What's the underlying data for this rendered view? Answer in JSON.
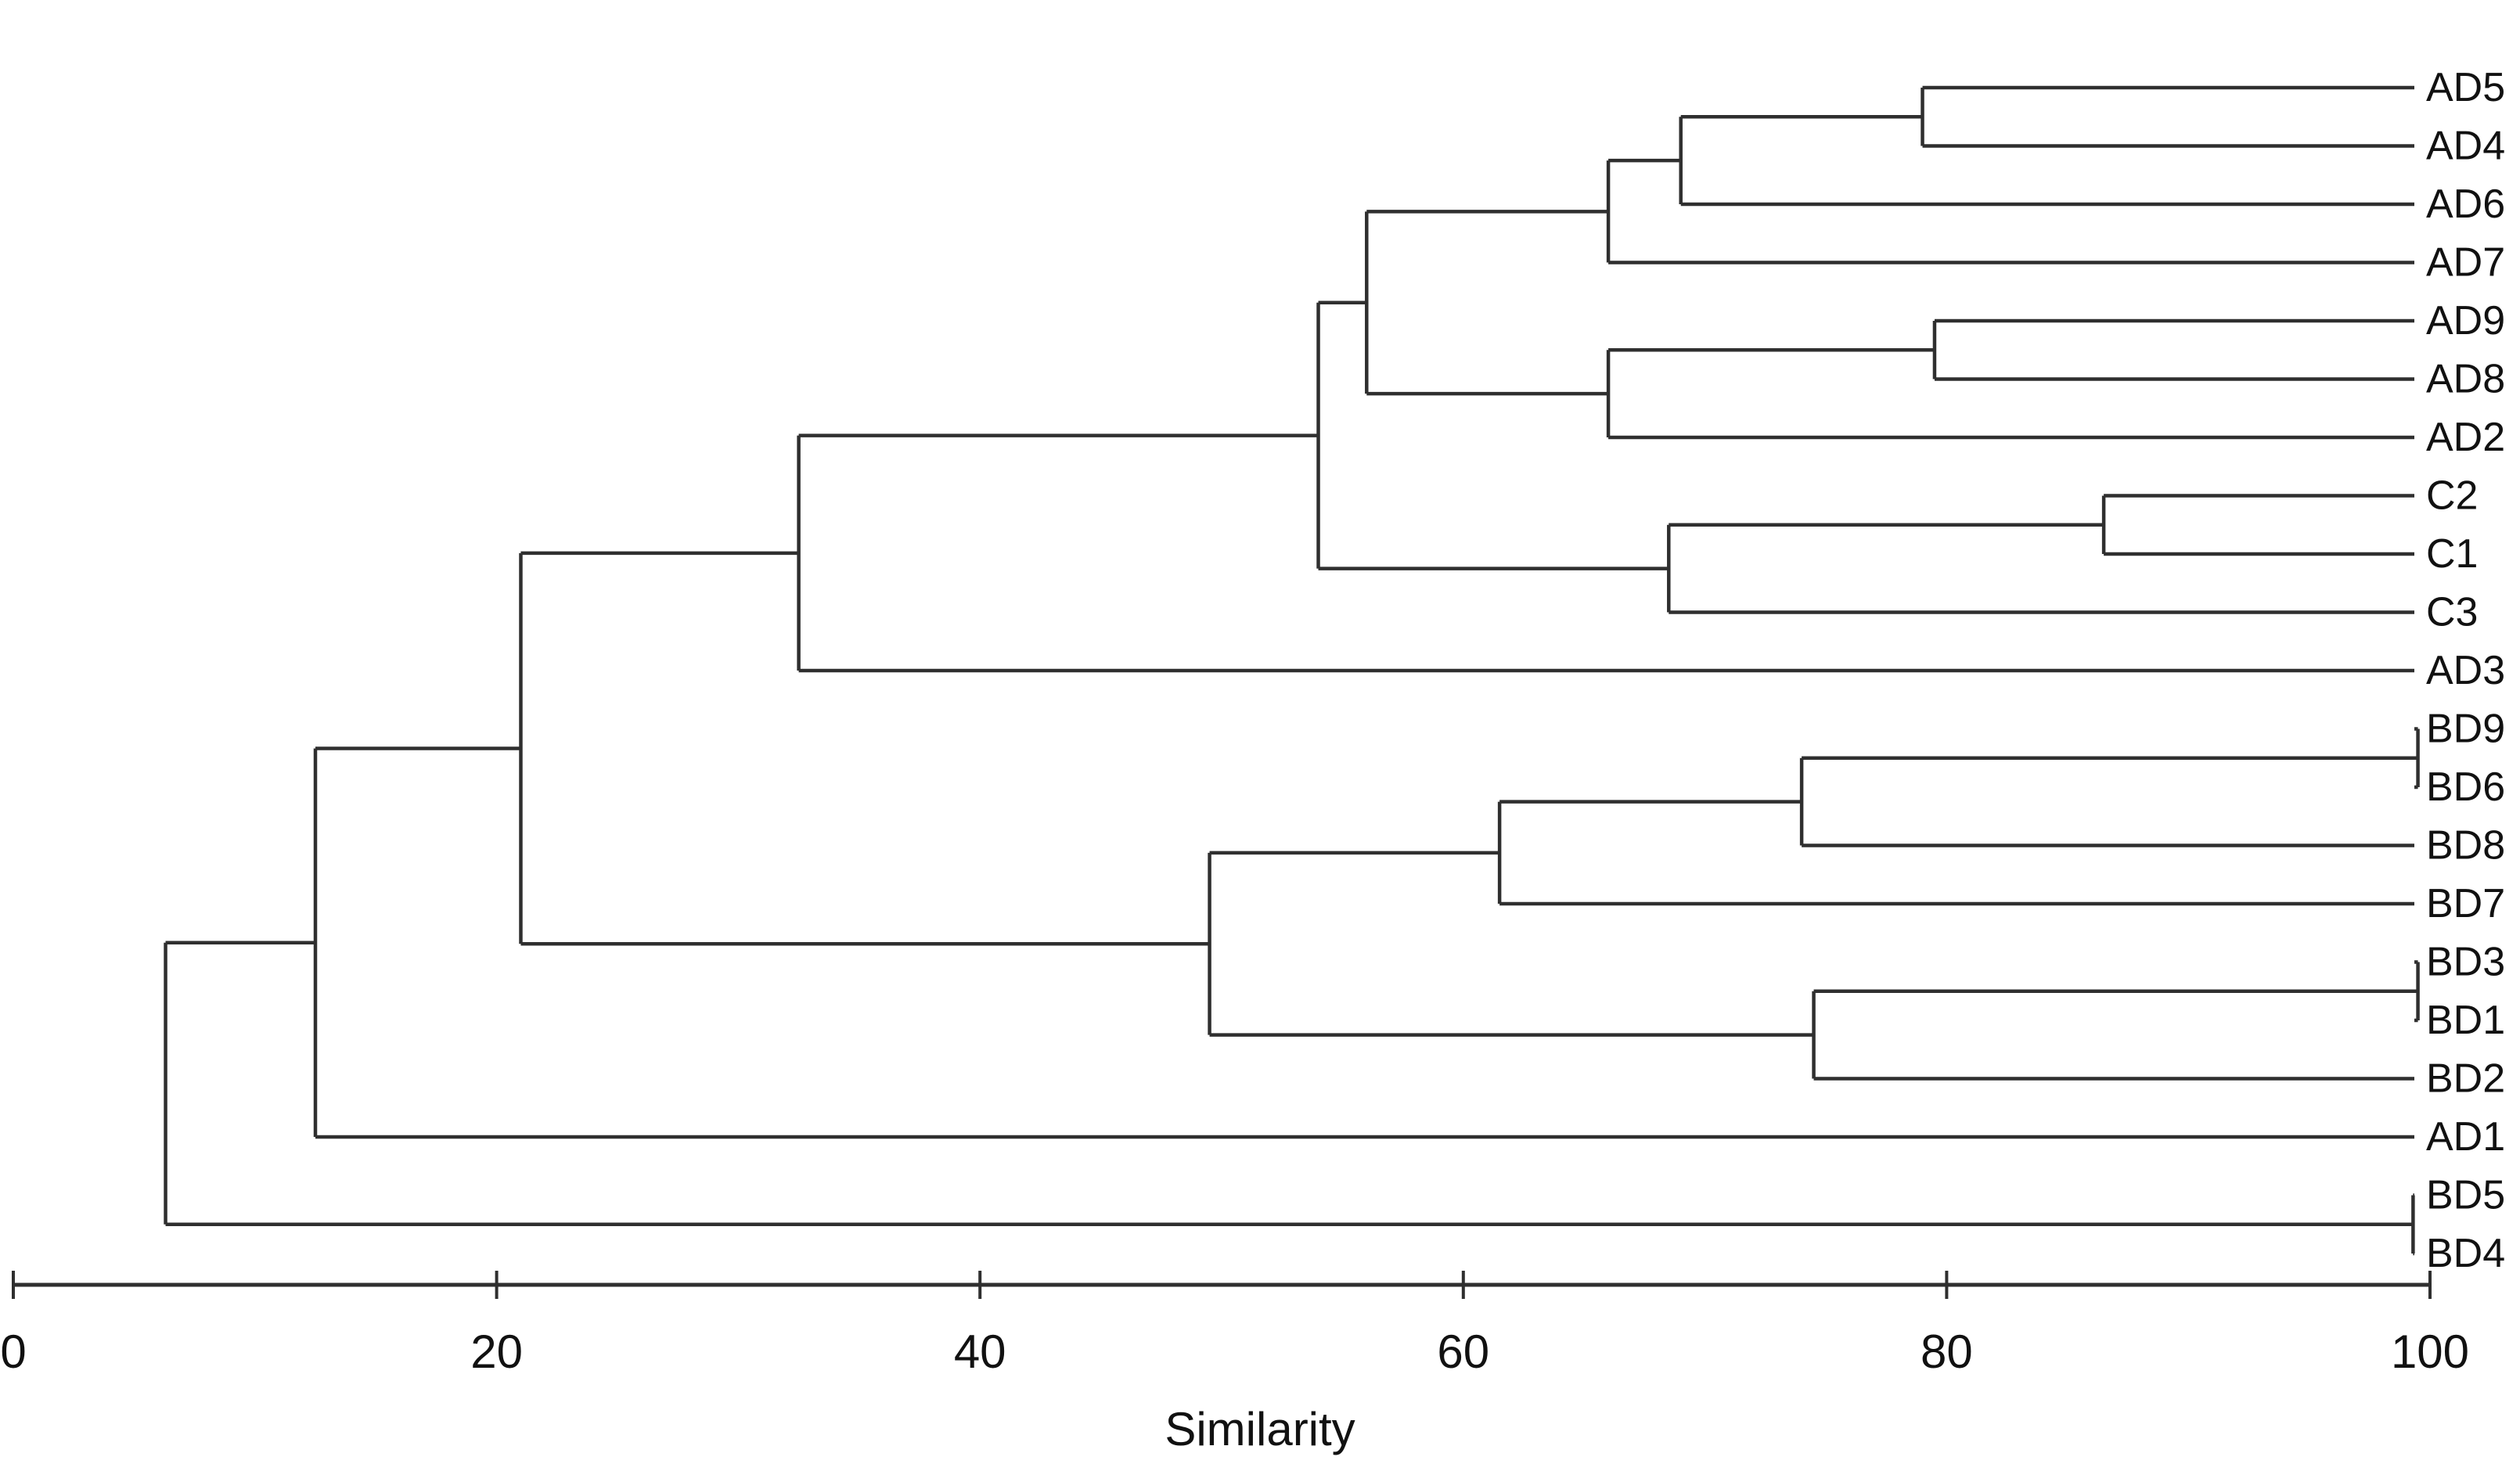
{
  "figure": {
    "background": "#ffffff",
    "line_color": "#2f2f2f",
    "text_color": "#111111"
  },
  "chart_data": {
    "type": "dendrogram",
    "orientation": "horizontal, leaves on right, root on left",
    "title": "",
    "xlabel": "Similarity",
    "axis": {
      "label": "Similarity",
      "position": "bottom",
      "range": [
        0,
        100
      ],
      "ticks": [
        0,
        20,
        40,
        60,
        80,
        100
      ]
    },
    "leaves": [
      "AD5",
      "AD4",
      "AD6",
      "AD7",
      "AD9",
      "AD8",
      "AD2",
      "C2",
      "C1",
      "C3",
      "AD3",
      "BD9",
      "BD6",
      "BD8",
      "BD7",
      "BD3",
      "BD1",
      "BD2",
      "AD1",
      "BD5",
      "BD4"
    ],
    "merges": [
      {
        "id": "n1",
        "a": "AD5",
        "b": "AD4",
        "similarity": 79
      },
      {
        "id": "n2",
        "a": "n1",
        "b": "AD6",
        "similarity": 69
      },
      {
        "id": "n3",
        "a": "n2",
        "b": "AD7",
        "similarity": 66
      },
      {
        "id": "n4",
        "a": "AD9",
        "b": "AD8",
        "similarity": 79.5
      },
      {
        "id": "n5",
        "a": "n4",
        "b": "AD2",
        "similarity": 66
      },
      {
        "id": "n6",
        "a": "n3",
        "b": "n5",
        "similarity": 56
      },
      {
        "id": "n7",
        "a": "C2",
        "b": "C1",
        "similarity": 86.5
      },
      {
        "id": "n8",
        "a": "n7",
        "b": "C3",
        "similarity": 68.5
      },
      {
        "id": "n9",
        "a": "n6",
        "b": "n8",
        "similarity": 54
      },
      {
        "id": "n10",
        "a": "n9",
        "b": "AD3",
        "similarity": 32.5
      },
      {
        "id": "n11",
        "a": "BD9",
        "b": "BD6",
        "similarity": 99.5
      },
      {
        "id": "n12",
        "a": "n11",
        "b": "BD8",
        "similarity": 74
      },
      {
        "id": "n13",
        "a": "n12",
        "b": "BD7",
        "similarity": 61.5
      },
      {
        "id": "n14",
        "a": "BD3",
        "b": "BD1",
        "similarity": 99.5
      },
      {
        "id": "n15",
        "a": "n14",
        "b": "BD2",
        "similarity": 74.5
      },
      {
        "id": "n16",
        "a": "n13",
        "b": "n15",
        "similarity": 49.5
      },
      {
        "id": "n17",
        "a": "n10",
        "b": "n16",
        "similarity": 21
      },
      {
        "id": "n18",
        "a": "n17",
        "b": "AD1",
        "similarity": 12.5
      },
      {
        "id": "n19",
        "a": "BD5",
        "b": "BD4",
        "similarity": 99.3
      },
      {
        "id": "n20",
        "a": "n18",
        "b": "n19",
        "similarity": 6.3
      }
    ]
  }
}
